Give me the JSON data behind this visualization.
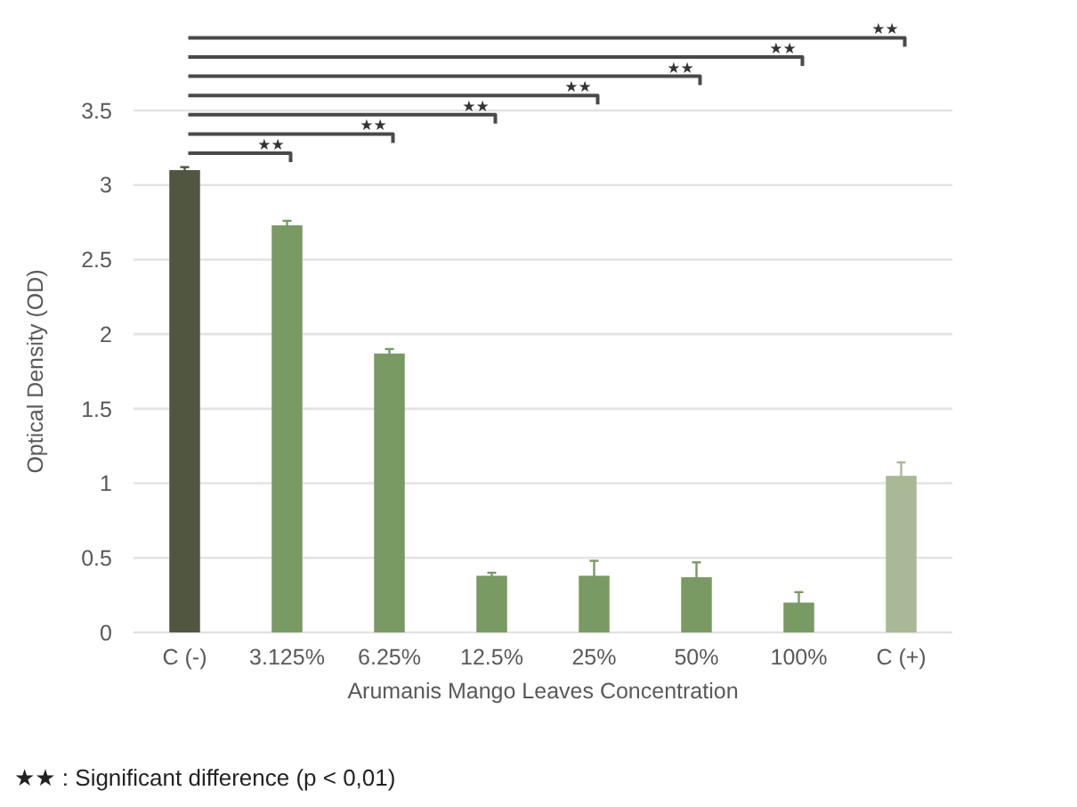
{
  "chart_data": {
    "type": "bar",
    "xlabel": "Arumanis Mango Leaves Concentration",
    "ylabel": "Optical Density (OD)",
    "categories": [
      "C (-)",
      "3.125%",
      "6.25%",
      "12.5%",
      "25%",
      "50%",
      "100%",
      "C (+)"
    ],
    "values": [
      3.1,
      2.73,
      1.87,
      0.38,
      0.38,
      0.37,
      0.2,
      1.05
    ],
    "errors": [
      0.02,
      0.03,
      0.03,
      0.02,
      0.1,
      0.1,
      0.07,
      0.09
    ],
    "colors": [
      "#50563f",
      "#799a63",
      "#799a63",
      "#799a63",
      "#799a63",
      "#799a63",
      "#799a63",
      "#a9b896"
    ],
    "ylim": [
      0,
      3.5
    ],
    "yticks": [
      0,
      0.5,
      1,
      1.5,
      2,
      2.5,
      3,
      3.5
    ],
    "grid": "y",
    "annotations": [
      "★★",
      "★★",
      "★★",
      "★★",
      "★★",
      "★★",
      "★★",
      "★★ : Significant difference (p < 0,01)"
    ]
  }
}
